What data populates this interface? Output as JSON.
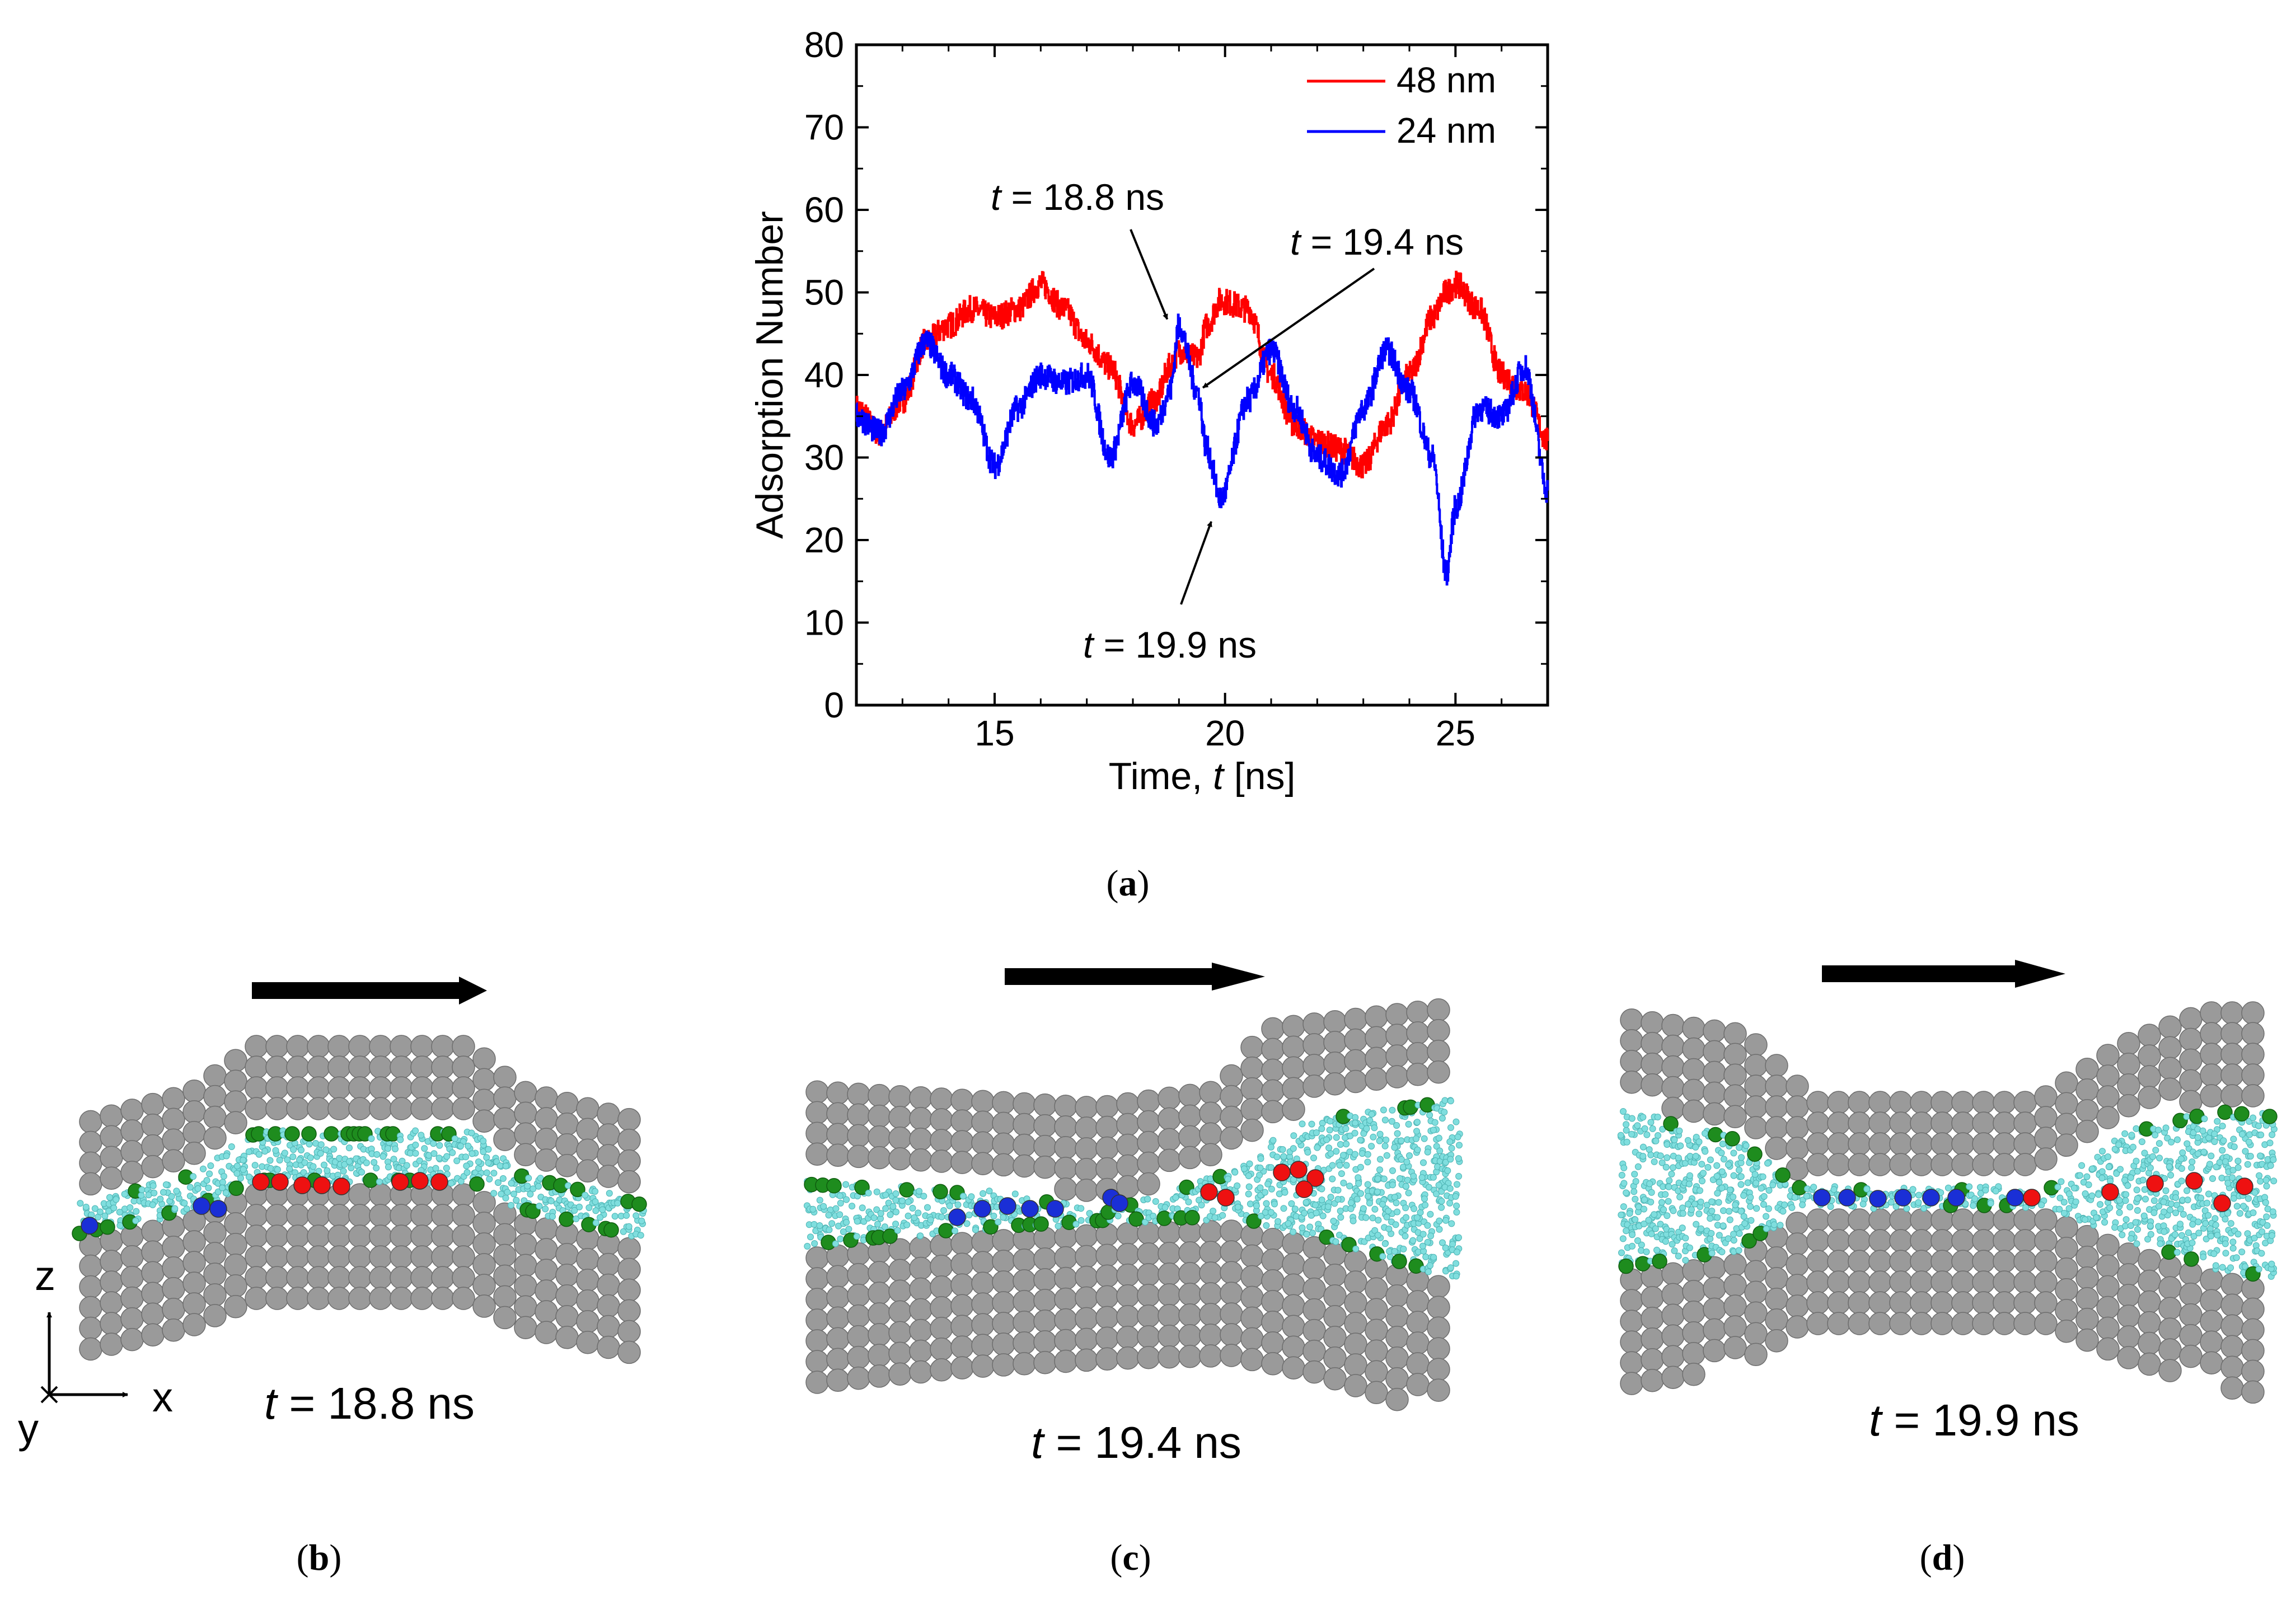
{
  "chart_data": {
    "type": "line",
    "title": "",
    "xlabel_prefix": "Time, ",
    "xlabel_var": "t",
    "xlabel_unit": " [ns]",
    "ylabel": "Adsorption Number",
    "xlim": [
      12,
      27
    ],
    "ylim": [
      0,
      80
    ],
    "xticks": [
      15,
      20,
      25
    ],
    "yticks": [
      0,
      10,
      20,
      30,
      40,
      50,
      60,
      70,
      80
    ],
    "grid": false,
    "legend_position": "top-right",
    "x": [
      12.0,
      12.5,
      13.0,
      13.5,
      14.0,
      14.5,
      15.0,
      15.5,
      16.0,
      16.5,
      17.0,
      17.5,
      18.0,
      18.5,
      18.8,
      19.0,
      19.4,
      19.6,
      19.9,
      20.5,
      21.0,
      21.5,
      22.0,
      22.5,
      23.0,
      23.5,
      24.0,
      24.5,
      24.8,
      25.0,
      25.5,
      26.0,
      26.5,
      27.0
    ],
    "series": [
      {
        "name": "48 nm",
        "color": "#ff0000",
        "values": [
          36,
          33,
          37,
          44,
          46,
          48,
          47,
          48,
          51,
          48,
          44,
          41,
          34,
          37,
          41,
          43,
          42,
          46,
          49,
          48,
          40,
          34,
          32,
          31,
          29,
          34,
          40,
          47,
          50,
          51,
          48,
          40,
          38,
          32
        ]
      },
      {
        "name": "24 nm",
        "color": "#0000ff",
        "values": [
          35,
          33,
          38,
          44,
          40,
          37,
          29,
          36,
          40,
          39,
          40,
          30,
          39,
          34,
          38,
          46,
          38,
          31,
          25,
          37,
          43,
          36,
          30,
          28,
          36,
          43,
          38,
          30,
          16,
          24,
          36,
          35,
          41,
          26
        ]
      }
    ]
  },
  "annotations": [
    {
      "var": "t",
      "rest": " = 18.8 ns",
      "target_x": 18.8,
      "target_y": 46
    },
    {
      "var": "t",
      "rest": " = 19.4 ns",
      "target_x": 19.4,
      "target_y": 38
    },
    {
      "var": "t",
      "rest": " = 19.9 ns",
      "target_x": 19.75,
      "target_y": 23
    }
  ],
  "panels": {
    "a": {
      "label": "a"
    },
    "b": {
      "label": "b",
      "time_var": "t",
      "time_rest": " = 18.8 ns"
    },
    "c": {
      "label": "c",
      "time_var": "t",
      "time_rest": " = 19.4 ns"
    },
    "d": {
      "label": "d",
      "time_var": "t",
      "time_rest": " = 19.9 ns"
    }
  },
  "axes_indicator": {
    "z": "z",
    "x": "x",
    "y": "y"
  },
  "colors": {
    "atom_gray": "#9a9a9a",
    "atom_green": "#1e8c1e",
    "water_cyan": "#7fdede",
    "ion_red": "#ee1111",
    "ion_blue": "#1a2fd6",
    "arrow": "#000000"
  }
}
